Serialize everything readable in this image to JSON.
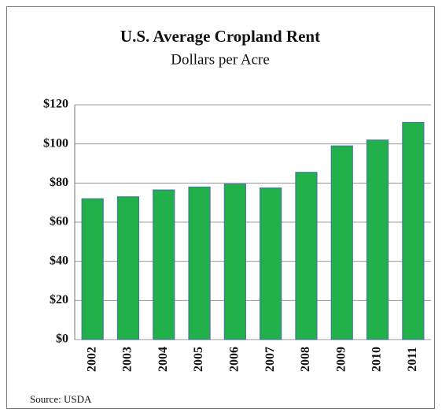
{
  "chart_data": {
    "type": "bar",
    "title": "U.S. Average Cropland Rent",
    "subtitle": "Dollars per Acre",
    "categories": [
      "2002",
      "2003",
      "2004",
      "2005",
      "2006",
      "2007",
      "2008",
      "2009",
      "2010",
      "2011"
    ],
    "values": [
      72,
      73,
      76.5,
      78,
      79.5,
      77.5,
      85.5,
      99,
      102,
      111
    ],
    "color": "#22b04b",
    "ylim": [
      0,
      120
    ],
    "yticks": [
      {
        "value": 0,
        "label": "$0"
      },
      {
        "value": 20,
        "label": "$20"
      },
      {
        "value": 40,
        "label": "$40"
      },
      {
        "value": 60,
        "label": "$60"
      },
      {
        "value": 80,
        "label": "$80"
      },
      {
        "value": 100,
        "label": "$100"
      },
      {
        "value": 120,
        "label": "$120"
      }
    ],
    "grid": true,
    "source": "Source: USDA"
  }
}
